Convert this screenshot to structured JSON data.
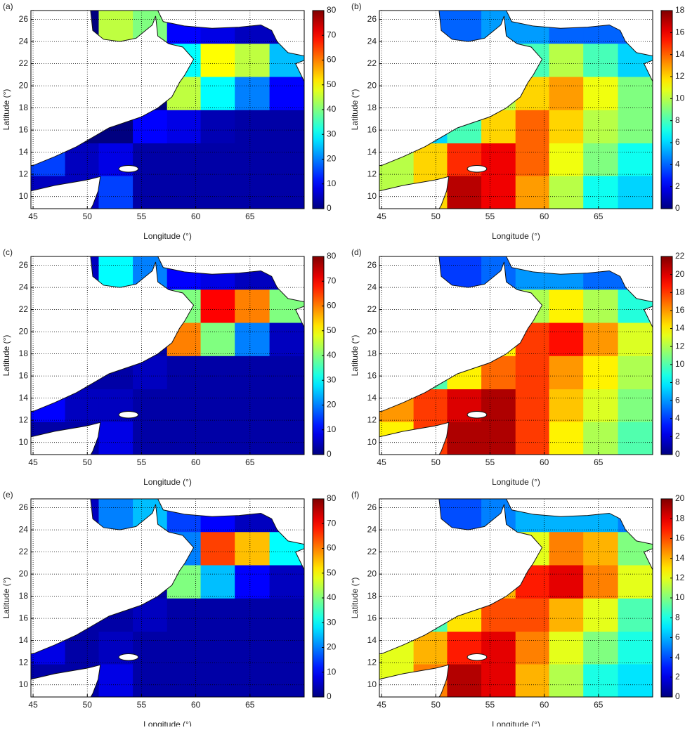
{
  "chart_data": [
    {
      "type": "heatmap",
      "label": "(a)",
      "xlabel": "Longitude (°)",
      "ylabel": "Latitude (°)",
      "colormap": "jet",
      "grid": true,
      "xlim": [
        44.8,
        70
      ],
      "ylim": [
        8.9,
        26.8
      ],
      "xticks": [
        45,
        50,
        55,
        60,
        65
      ],
      "yticks": [
        10,
        12,
        14,
        16,
        18,
        20,
        22,
        24,
        26
      ],
      "x": [
        46.4,
        49.5,
        52.6,
        55.8,
        58.9,
        62,
        65.2,
        68.4
      ],
      "y": [
        25.3,
        22.3,
        19.3,
        16.3,
        13.3,
        10.4
      ],
      "z": [
        [
          0,
          0,
          45,
          40,
          10,
          8,
          5,
          5
        ],
        [
          0,
          0,
          0,
          0,
          30,
          50,
          45,
          25
        ],
        [
          0,
          0,
          0,
          0,
          45,
          30,
          20,
          10
        ],
        [
          0,
          0,
          0,
          10,
          8,
          4,
          3,
          3
        ],
        [
          15,
          5,
          8,
          3,
          3,
          3,
          3,
          3
        ],
        [
          5,
          5,
          15,
          3,
          3,
          3,
          3,
          3
        ]
      ],
      "zlim": [
        0,
        80
      ],
      "zticks": [
        0,
        10,
        20,
        30,
        40,
        50,
        60,
        70,
        80
      ]
    },
    {
      "type": "heatmap",
      "label": "(b)",
      "xlabel": "Longitude (°)",
      "ylabel": "Latitude (°)",
      "colormap": "jet",
      "grid": true,
      "xlim": [
        44.8,
        70
      ],
      "ylim": [
        8.9,
        26.8
      ],
      "xticks": [
        45,
        50,
        55,
        60,
        65
      ],
      "yticks": [
        10,
        12,
        14,
        16,
        18,
        20,
        22,
        24,
        26
      ],
      "x": [
        46.4,
        49.5,
        52.6,
        55.8,
        58.9,
        62,
        65.2,
        68.4
      ],
      "y": [
        25.3,
        22.3,
        19.3,
        16.3,
        13.3,
        10.4
      ],
      "z": [
        [
          4,
          4,
          4,
          5,
          5,
          4,
          4,
          4
        ],
        [
          4,
          4,
          4,
          6,
          8,
          10,
          8,
          6
        ],
        [
          4,
          4,
          6,
          10,
          12,
          13,
          11,
          9
        ],
        [
          4,
          6,
          8,
          12,
          14,
          12,
          10,
          9
        ],
        [
          10,
          12,
          15,
          16,
          14,
          11,
          9,
          7
        ],
        [
          10,
          12,
          17,
          16,
          13,
          10,
          7,
          6
        ]
      ],
      "zlim": [
        0,
        18
      ],
      "zticks": [
        0,
        2,
        4,
        6,
        8,
        10,
        12,
        14,
        16,
        18
      ]
    },
    {
      "type": "heatmap",
      "label": "(c)",
      "xlabel": "Longitude (°)",
      "ylabel": "Latitude (°)",
      "colormap": "jet",
      "grid": true,
      "xlim": [
        44.8,
        70
      ],
      "ylim": [
        8.9,
        26.8
      ],
      "xticks": [
        45,
        50,
        55,
        60,
        65
      ],
      "yticks": [
        10,
        12,
        14,
        16,
        18,
        20,
        22,
        24,
        26
      ],
      "x": [
        46.4,
        49.5,
        52.6,
        55.8,
        58.9,
        62,
        65.2,
        68.4
      ],
      "y": [
        25.3,
        22.3,
        19.3,
        16.3,
        13.3,
        10.4
      ],
      "z": [
        [
          5,
          5,
          30,
          20,
          10,
          8,
          5,
          5
        ],
        [
          3,
          3,
          3,
          3,
          40,
          70,
          60,
          40
        ],
        [
          3,
          3,
          3,
          3,
          60,
          40,
          20,
          5
        ],
        [
          3,
          3,
          3,
          5,
          3,
          3,
          3,
          3
        ],
        [
          10,
          5,
          5,
          3,
          3,
          3,
          3,
          3
        ],
        [
          3,
          3,
          8,
          3,
          3,
          3,
          3,
          3
        ]
      ],
      "zlim": [
        0,
        80
      ],
      "zticks": [
        0,
        10,
        20,
        30,
        40,
        50,
        60,
        70,
        80
      ]
    },
    {
      "type": "heatmap",
      "label": "(d)",
      "xlabel": "Longitude (°)",
      "ylabel": "Latitude (°)",
      "colormap": "jet",
      "grid": true,
      "xlim": [
        44.8,
        70
      ],
      "ylim": [
        8.9,
        26.8
      ],
      "xticks": [
        45,
        50,
        55,
        60,
        65
      ],
      "yticks": [
        10,
        12,
        14,
        16,
        18,
        20,
        22,
        24,
        26
      ],
      "x": [
        46.4,
        49.5,
        52.6,
        55.8,
        58.9,
        62,
        65.2,
        68.4
      ],
      "y": [
        25.3,
        22.3,
        19.3,
        16.3,
        13.3,
        10.4
      ],
      "z": [
        [
          4,
          4,
          4,
          5,
          6,
          6,
          5,
          5
        ],
        [
          4,
          4,
          5,
          8,
          12,
          14,
          12,
          9
        ],
        [
          4,
          4,
          8,
          14,
          18,
          19,
          16,
          13
        ],
        [
          5,
          10,
          14,
          17,
          18,
          16,
          14,
          12
        ],
        [
          16,
          18,
          20,
          21,
          18,
          15,
          13,
          11
        ],
        [
          14,
          18,
          21,
          21,
          18,
          14,
          12,
          10
        ]
      ],
      "zlim": [
        0,
        22
      ],
      "zticks": [
        0,
        2,
        4,
        6,
        8,
        10,
        12,
        14,
        16,
        18,
        20,
        22
      ]
    },
    {
      "type": "heatmap",
      "label": "(e)",
      "xlabel": "Longitude (°)",
      "ylabel": "Latitude (°)",
      "colormap": "jet",
      "grid": true,
      "xlim": [
        44.8,
        70
      ],
      "ylim": [
        8.9,
        26.8
      ],
      "xticks": [
        45,
        50,
        55,
        60,
        65
      ],
      "yticks": [
        10,
        12,
        14,
        16,
        18,
        20,
        22,
        24,
        26
      ],
      "x": [
        46.4,
        49.5,
        52.6,
        55.8,
        58.9,
        62,
        65.2,
        68.4
      ],
      "y": [
        25.3,
        22.3,
        19.3,
        16.3,
        13.3,
        10.4
      ],
      "z": [
        [
          5,
          5,
          20,
          25,
          15,
          10,
          5,
          5
        ],
        [
          3,
          3,
          3,
          3,
          20,
          65,
          55,
          30
        ],
        [
          3,
          3,
          3,
          3,
          40,
          25,
          10,
          5
        ],
        [
          3,
          3,
          3,
          5,
          3,
          3,
          3,
          3
        ],
        [
          8,
          3,
          5,
          3,
          3,
          3,
          3,
          3
        ],
        [
          3,
          3,
          8,
          3,
          3,
          3,
          3,
          3
        ]
      ],
      "zlim": [
        0,
        80
      ],
      "zticks": [
        0,
        10,
        20,
        30,
        40,
        50,
        60,
        70,
        80
      ]
    },
    {
      "type": "heatmap",
      "label": "(f)",
      "xlabel": "Longitude (°)",
      "ylabel": "Latitude (°)",
      "colormap": "jet",
      "grid": true,
      "xlim": [
        44.8,
        70
      ],
      "ylim": [
        8.9,
        26.8
      ],
      "xticks": [
        45,
        50,
        55,
        60,
        65
      ],
      "yticks": [
        10,
        12,
        14,
        16,
        18,
        20,
        22,
        24,
        26
      ],
      "x": [
        46.4,
        49.5,
        52.6,
        55.8,
        58.9,
        62,
        65.2,
        68.4
      ],
      "y": [
        25.3,
        22.3,
        19.3,
        16.3,
        13.3,
        10.4
      ],
      "z": [
        [
          4,
          4,
          4,
          5,
          6,
          6,
          6,
          5
        ],
        [
          4,
          4,
          5,
          8,
          12,
          15,
          14,
          10
        ],
        [
          4,
          5,
          9,
          14,
          17,
          18,
          15,
          12
        ],
        [
          5,
          9,
          13,
          16,
          16,
          14,
          12,
          9
        ],
        [
          12,
          14,
          17,
          18,
          15,
          12,
          10,
          8
        ],
        [
          12,
          15,
          19,
          18,
          14,
          11,
          8,
          7
        ]
      ],
      "zlim": [
        0,
        20
      ],
      "zticks": [
        0,
        2,
        4,
        6,
        8,
        10,
        12,
        14,
        16,
        18,
        20
      ]
    }
  ]
}
